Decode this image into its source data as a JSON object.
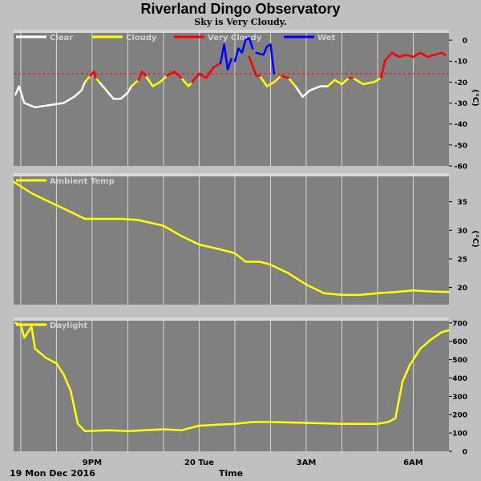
{
  "title": "Riverland Dingo Observatory",
  "subtitle": "Sky is Very Cloudy.",
  "footer": {
    "date": "19 Mon Dec 2016",
    "xlabel": "Time"
  },
  "x_ticks": [
    {
      "label": "9PM",
      "t": 2.0
    },
    {
      "label": "20 Tue",
      "t": 5.0
    },
    {
      "label": "3AM",
      "t": 8.0
    },
    {
      "label": "6AM",
      "t": 11.0
    }
  ],
  "x_range": [
    -0.2,
    12.0
  ],
  "colors": {
    "plot_bg": "#808080",
    "grid": "#d8d8d8",
    "clear": "#ffffff",
    "cloudy": "#ffff00",
    "very_cloudy": "#ff0000",
    "wet": "#0000ff",
    "threshold": "#ff0000",
    "ambient": "#ffff00",
    "daylight": "#ffff00"
  },
  "chart_data": [
    {
      "type": "line",
      "title": "",
      "ylabel": "(°C)",
      "ylim": [
        -60,
        5
      ],
      "yticks": [
        0,
        -10,
        -20,
        -30,
        -40,
        -50,
        -60
      ],
      "threshold": -16,
      "legend": [
        "Clear",
        "Cloudy",
        "Very Cloudy",
        "Wet"
      ],
      "series": [
        {
          "name": "Clear",
          "color": "#ffffff",
          "segments": [
            [
              [
                -0.15,
                -26
              ],
              [
                -0.05,
                -22
              ],
              [
                0.1,
                -30
              ],
              [
                0.4,
                -32
              ],
              [
                0.8,
                -31
              ],
              [
                1.2,
                -30
              ],
              [
                1.5,
                -27
              ],
              [
                1.7,
                -24
              ],
              [
                1.8,
                -20
              ]
            ],
            [
              [
                2.2,
                -20
              ],
              [
                2.4,
                -24
              ],
              [
                2.6,
                -28
              ],
              [
                2.8,
                -28
              ],
              [
                3.0,
                -25
              ],
              [
                3.1,
                -22
              ]
            ],
            [
              [
                7.7,
                -22
              ],
              [
                7.9,
                -27
              ],
              [
                8.1,
                -24
              ],
              [
                8.4,
                -22
              ],
              [
                8.6,
                -22
              ]
            ]
          ]
        },
        {
          "name": "Cloudy",
          "color": "#ffff00",
          "segments": [
            [
              [
                1.8,
                -20
              ],
              [
                1.95,
                -17
              ]
            ],
            [
              [
                2.1,
                -18
              ],
              [
                2.2,
                -20
              ]
            ],
            [
              [
                3.1,
                -22
              ],
              [
                3.3,
                -19
              ]
            ],
            [
              [
                3.5,
                -17
              ],
              [
                3.7,
                -22
              ],
              [
                3.9,
                -20
              ],
              [
                4.1,
                -17
              ]
            ],
            [
              [
                4.5,
                -18
              ],
              [
                4.7,
                -22
              ],
              [
                4.8,
                -20
              ]
            ],
            [
              [
                6.7,
                -17
              ],
              [
                6.9,
                -22
              ],
              [
                7.1,
                -20
              ],
              [
                7.3,
                -17
              ]
            ],
            [
              [
                7.5,
                -18
              ],
              [
                7.7,
                -22
              ]
            ],
            [
              [
                8.6,
                -22
              ],
              [
                8.8,
                -19
              ],
              [
                9.0,
                -21
              ],
              [
                9.2,
                -18
              ]
            ],
            [
              [
                9.3,
                -18
              ],
              [
                9.6,
                -21
              ],
              [
                9.9,
                -20
              ],
              [
                10.1,
                -18
              ]
            ]
          ]
        },
        {
          "name": "Very Cloudy",
          "color": "#ff0000",
          "segments": [
            [
              [
                1.95,
                -17
              ],
              [
                2.05,
                -15
              ],
              [
                2.1,
                -18
              ]
            ],
            [
              [
                3.3,
                -19
              ],
              [
                3.4,
                -15
              ],
              [
                3.5,
                -17
              ]
            ],
            [
              [
                4.1,
                -17
              ],
              [
                4.3,
                -15
              ],
              [
                4.5,
                -18
              ]
            ],
            [
              [
                4.8,
                -20
              ],
              [
                5.0,
                -16
              ],
              [
                5.2,
                -18
              ],
              [
                5.4,
                -13
              ],
              [
                5.6,
                -11
              ]
            ],
            [
              [
                6.4,
                -8
              ],
              [
                6.6,
                -17
              ],
              [
                6.7,
                -17
              ]
            ],
            [
              [
                7.3,
                -17
              ],
              [
                7.5,
                -18
              ]
            ],
            [
              [
                9.2,
                -18
              ],
              [
                9.3,
                -18
              ]
            ],
            [
              [
                10.1,
                -18
              ],
              [
                10.2,
                -10
              ],
              [
                10.4,
                -6
              ],
              [
                10.6,
                -8
              ],
              [
                10.8,
                -7
              ],
              [
                11.0,
                -8
              ],
              [
                11.2,
                -6
              ],
              [
                11.4,
                -8
              ],
              [
                11.6,
                -7
              ],
              [
                11.8,
                -6
              ],
              [
                11.9,
                -7
              ]
            ]
          ]
        },
        {
          "name": "Wet",
          "color": "#0000ff",
          "segments": [
            [
              [
                5.6,
                -11
              ],
              [
                5.7,
                -2
              ],
              [
                5.8,
                -14
              ],
              [
                5.9,
                -9
              ]
            ],
            [
              [
                6.0,
                -10
              ],
              [
                6.1,
                -4
              ],
              [
                6.2,
                -6
              ],
              [
                6.3,
                0
              ],
              [
                6.4,
                1
              ],
              [
                6.5,
                -4
              ]
            ],
            [
              [
                6.6,
                -6
              ],
              [
                6.8,
                -7
              ],
              [
                6.9,
                -3
              ],
              [
                7.0,
                -2
              ],
              [
                7.1,
                -16
              ]
            ]
          ]
        }
      ]
    },
    {
      "type": "line",
      "title": "",
      "ylabel": "(°C)",
      "ylim": [
        17,
        40
      ],
      "yticks": [
        20,
        25,
        30,
        35
      ],
      "legend": [
        "Ambient Temp"
      ],
      "series": [
        {
          "name": "Ambient Temp",
          "color": "#ffff00",
          "points": [
            [
              -0.2,
              38.5
            ],
            [
              0.3,
              36.5
            ],
            [
              0.8,
              35.0
            ],
            [
              1.3,
              33.5
            ],
            [
              1.8,
              32.0
            ],
            [
              2.3,
              32.0
            ],
            [
              2.8,
              32.0
            ],
            [
              3.3,
              31.8
            ],
            [
              4.0,
              30.8
            ],
            [
              4.5,
              29.0
            ],
            [
              5.0,
              27.5
            ],
            [
              5.5,
              26.8
            ],
            [
              6.0,
              26.0
            ],
            [
              6.3,
              24.5
            ],
            [
              6.7,
              24.5
            ],
            [
              7.0,
              24.0
            ],
            [
              7.5,
              22.5
            ],
            [
              8.0,
              20.5
            ],
            [
              8.5,
              19.0
            ],
            [
              9.0,
              18.7
            ],
            [
              9.5,
              18.7
            ],
            [
              10.0,
              19.0
            ],
            [
              10.5,
              19.2
            ],
            [
              11.0,
              19.5
            ],
            [
              11.5,
              19.3
            ],
            [
              12.0,
              19.2
            ]
          ]
        }
      ]
    },
    {
      "type": "line",
      "title": "",
      "ylabel": "",
      "ylim": [
        0,
        730
      ],
      "yticks": [
        0,
        100,
        200,
        300,
        400,
        500,
        600,
        700
      ],
      "legend": [
        "Daylight"
      ],
      "series": [
        {
          "name": "Daylight",
          "color": "#ffff00",
          "points": [
            [
              -0.15,
              700
            ],
            [
              0.0,
              690
            ],
            [
              0.1,
              620
            ],
            [
              0.3,
              680
            ],
            [
              0.4,
              560
            ],
            [
              0.7,
              510
            ],
            [
              1.0,
              480
            ],
            [
              1.2,
              420
            ],
            [
              1.4,
              330
            ],
            [
              1.6,
              150
            ],
            [
              1.8,
              110
            ],
            [
              2.5,
              115
            ],
            [
              3.0,
              110
            ],
            [
              4.0,
              120
            ],
            [
              4.5,
              115
            ],
            [
              5.0,
              140
            ],
            [
              5.5,
              145
            ],
            [
              6.0,
              150
            ],
            [
              6.5,
              160
            ],
            [
              7.0,
              160
            ],
            [
              8.0,
              155
            ],
            [
              9.0,
              150
            ],
            [
              10.0,
              150
            ],
            [
              10.3,
              160
            ],
            [
              10.5,
              180
            ],
            [
              10.7,
              380
            ],
            [
              10.9,
              470
            ],
            [
              11.2,
              560
            ],
            [
              11.5,
              610
            ],
            [
              11.8,
              650
            ],
            [
              12.0,
              660
            ]
          ]
        }
      ]
    }
  ]
}
